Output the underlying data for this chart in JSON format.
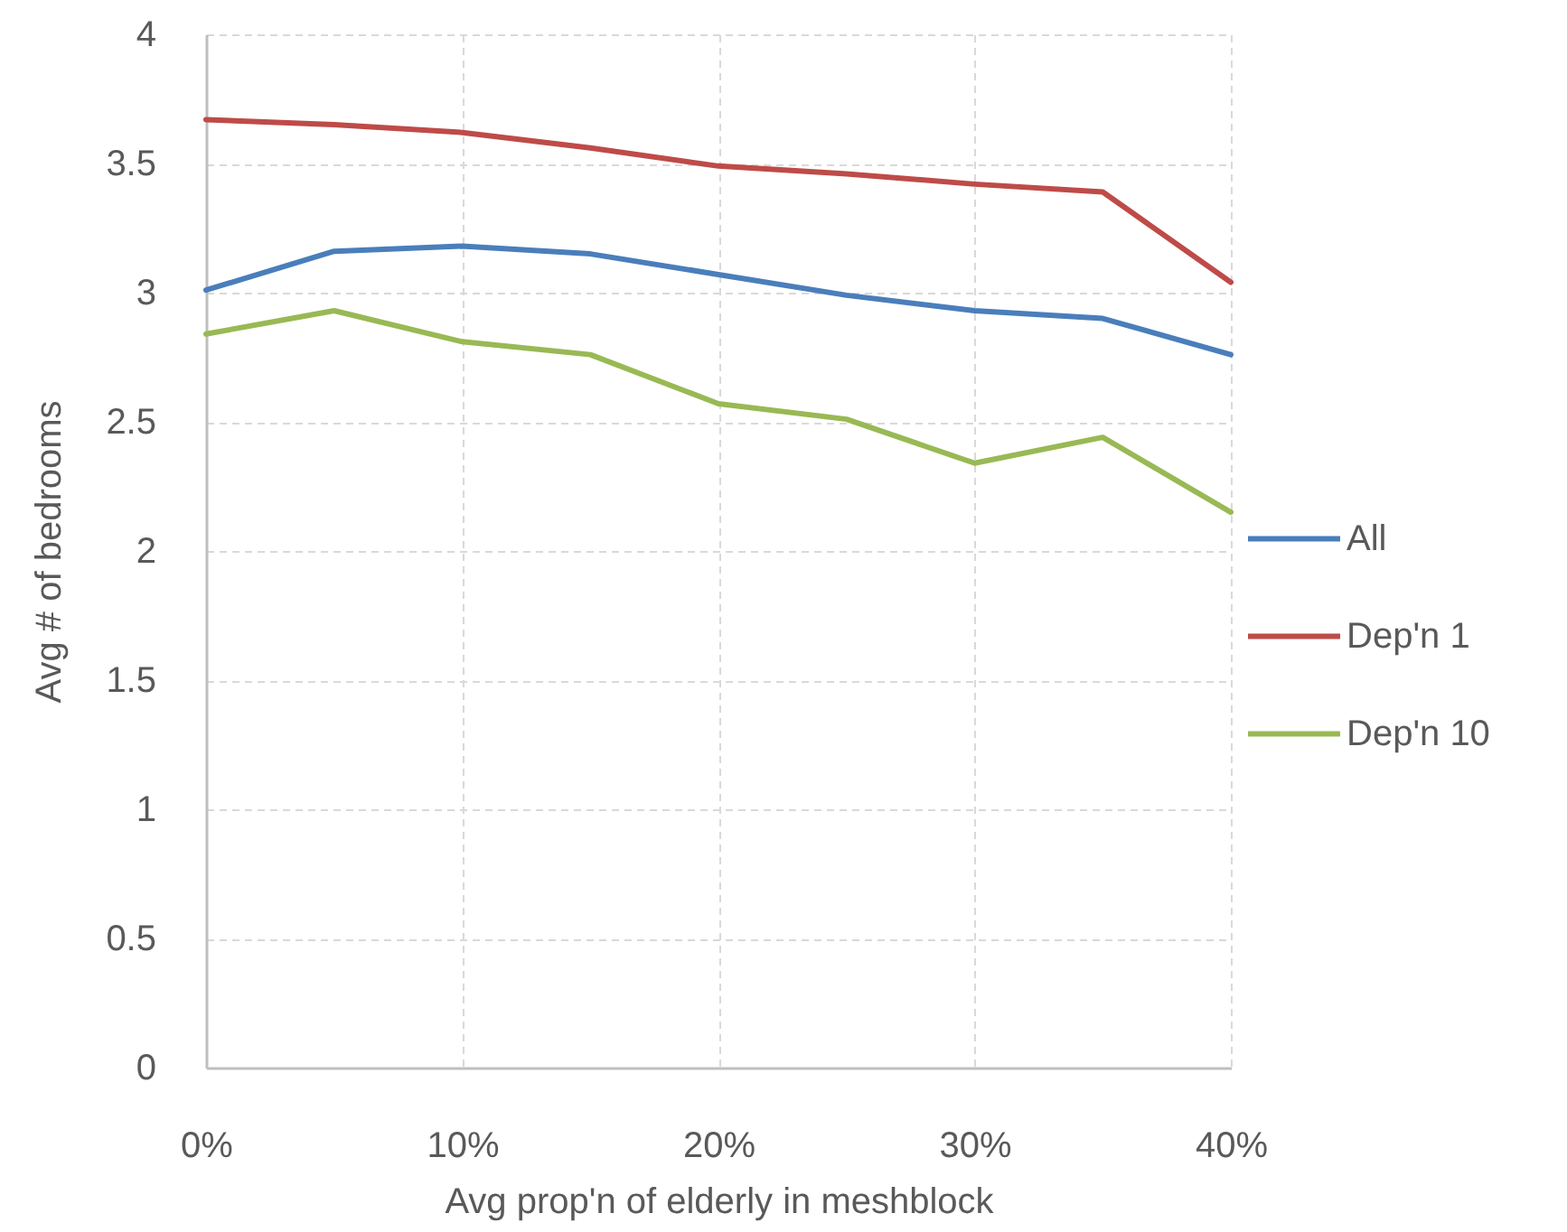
{
  "chart_data": {
    "type": "line",
    "xlabel": "Avg prop'n of elderly in meshblock",
    "ylabel": "Avg # of bedrooms",
    "x": [
      0,
      5,
      10,
      15,
      20,
      25,
      30,
      35,
      40
    ],
    "series": [
      {
        "name": "All",
        "color": "#4a7ebb",
        "values": [
          3.01,
          3.16,
          3.18,
          3.15,
          3.07,
          2.99,
          2.93,
          2.9,
          2.76
        ]
      },
      {
        "name": "Dep'n 1",
        "color": "#be4b48",
        "values": [
          3.67,
          3.65,
          3.62,
          3.56,
          3.49,
          3.46,
          3.42,
          3.39,
          3.04
        ]
      },
      {
        "name": "Dep'n 10",
        "color": "#98b954",
        "values": [
          2.84,
          2.93,
          2.81,
          2.76,
          2.57,
          2.51,
          2.34,
          2.44,
          2.15
        ]
      }
    ],
    "xlim": [
      0,
      40
    ],
    "xticks": [
      {
        "value": 0,
        "label": "0%"
      },
      {
        "value": 10,
        "label": "10%"
      },
      {
        "value": 20,
        "label": "20%"
      },
      {
        "value": 30,
        "label": "30%"
      },
      {
        "value": 40,
        "label": "40%"
      }
    ],
    "ylim": [
      0,
      4
    ],
    "yticks": [
      0,
      0.5,
      1,
      1.5,
      2,
      2.5,
      3,
      3.5,
      4
    ],
    "grid": true,
    "legend": "right"
  }
}
